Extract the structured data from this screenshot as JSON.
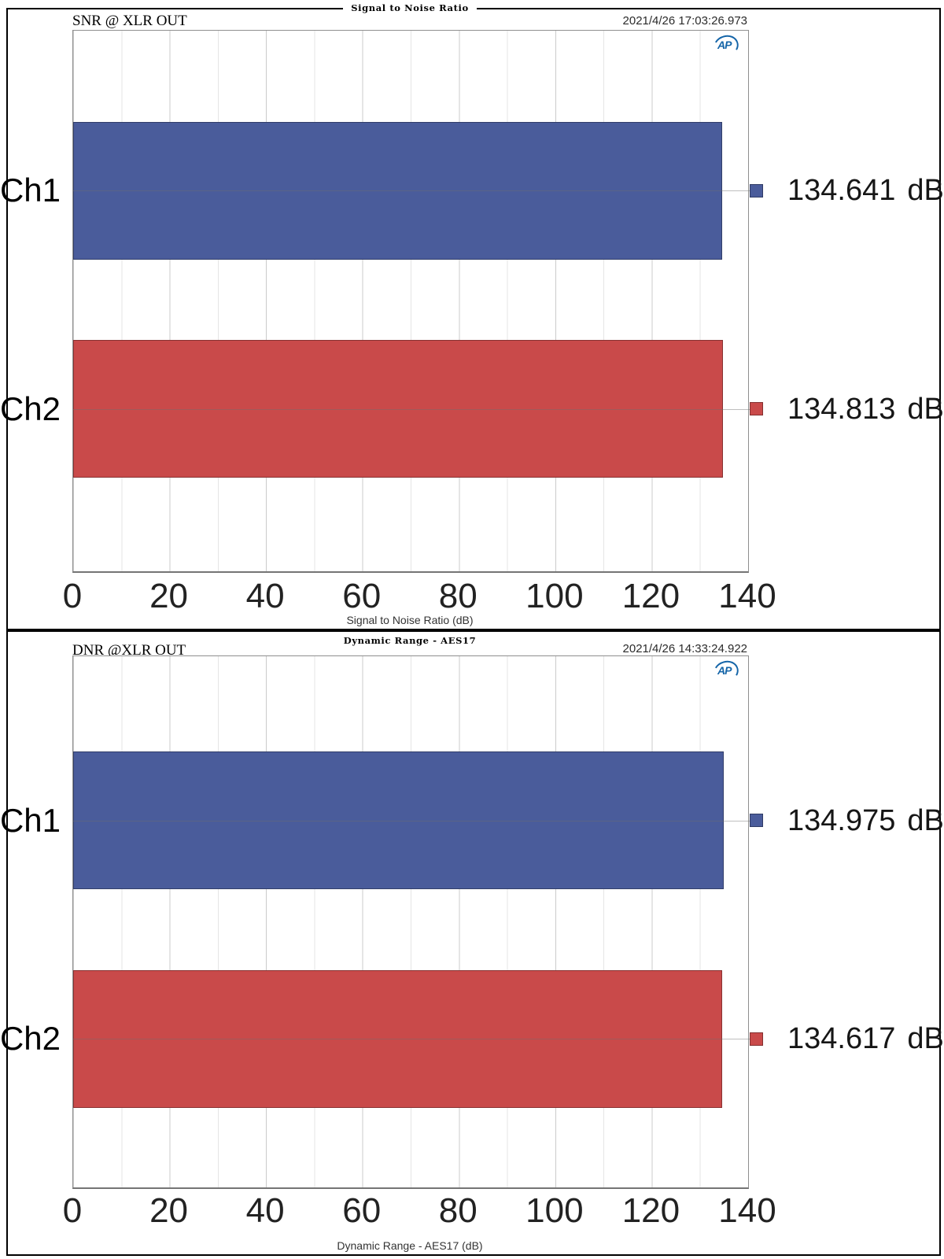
{
  "logo_text": "AP",
  "x_ticks": [
    "0",
    "20",
    "40",
    "60",
    "80",
    "100",
    "120",
    "140"
  ],
  "chart_data": [
    {
      "type": "bar",
      "orientation": "horizontal",
      "title": "Signal to Noise Ratio",
      "header": "SNR @ XLR OUT",
      "timestamp": "2021/4/26 17:03:26.973",
      "categories": [
        "Ch1",
        "Ch2"
      ],
      "values": [
        134.641,
        134.813
      ],
      "value_labels": [
        "134.641",
        "134.813"
      ],
      "unit": "dB",
      "xlabel": "Signal to Noise Ratio (dB)",
      "xlim": [
        0,
        140
      ],
      "x_tick_step": 20,
      "series_colors": [
        "#4a5c9b",
        "#c94a4a"
      ],
      "grid": true,
      "legend_position": "right"
    },
    {
      "type": "bar",
      "orientation": "horizontal",
      "title": "Dynamic Range - AES17",
      "header": "DNR @XLR OUT",
      "timestamp": "2021/4/26 14:33:24.922",
      "categories": [
        "Ch1",
        "Ch2"
      ],
      "values": [
        134.975,
        134.617
      ],
      "value_labels": [
        "134.975",
        "134.617"
      ],
      "unit": "dB",
      "xlabel": "Dynamic Range - AES17 (dB)",
      "xlim": [
        0,
        140
      ],
      "x_tick_step": 20,
      "series_colors": [
        "#4a5c9b",
        "#c94a4a"
      ],
      "grid": true,
      "legend_position": "right"
    }
  ]
}
